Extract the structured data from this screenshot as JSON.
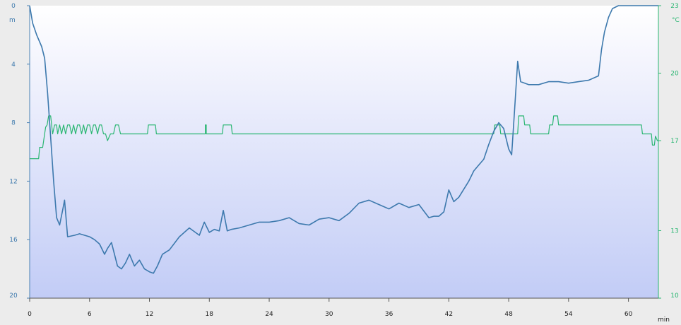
{
  "chart_data": {
    "type": "line",
    "left_axis": {
      "unit": "m",
      "ticks": [
        "0",
        "4",
        "8",
        "12",
        "16",
        "20"
      ],
      "range": [
        0,
        20
      ],
      "inverted": true,
      "color": "#3d79ad"
    },
    "right_axis": {
      "unit": "°C",
      "ticks": [
        "10",
        "13",
        "17",
        "20",
        "23"
      ],
      "range": [
        10,
        23
      ],
      "color": "#2ab672"
    },
    "x_axis": {
      "unit": "min",
      "ticks": [
        "0",
        "6",
        "12",
        "18",
        "24",
        "30",
        "36",
        "42",
        "48",
        "54",
        "60"
      ],
      "range": [
        0,
        63
      ]
    },
    "series": [
      {
        "axis": "left",
        "color": "#3d79ad",
        "x": [
          0,
          0.3,
          0.7,
          1.2,
          1.5,
          1.8,
          2.1,
          2.4,
          2.7,
          3.0,
          3.3,
          3.5,
          3.8,
          4.5,
          5,
          6,
          6.5,
          7,
          7.5,
          7.8,
          8.2,
          8.8,
          9.2,
          9.6,
          10,
          10.5,
          11,
          11.5,
          12,
          12.4,
          12.8,
          13.3,
          14,
          15,
          16,
          17,
          17.5,
          18,
          18.5,
          19,
          19.4,
          19.8,
          20.2,
          21,
          22,
          23,
          24,
          25,
          26,
          27,
          28,
          29,
          30,
          31,
          32,
          33,
          34,
          35,
          36,
          37,
          38,
          39,
          40,
          40.5,
          41,
          41.5,
          42,
          42.5,
          43,
          44,
          44.5,
          45,
          45.5,
          46,
          46.5,
          47,
          47.5,
          48,
          48.3,
          48.6,
          48.9,
          49.2,
          50,
          51,
          52,
          53,
          54,
          55,
          56,
          57,
          57.3,
          57.6,
          58,
          58.4,
          59,
          60,
          61,
          62,
          63
        ],
        "y": [
          0,
          1.2,
          2,
          2.8,
          3.6,
          6,
          9,
          12,
          14.5,
          15,
          14,
          13.3,
          15.8,
          15.7,
          15.6,
          15.8,
          16,
          16.3,
          17,
          16.6,
          16.2,
          17.8,
          18,
          17.6,
          17,
          17.8,
          17.4,
          18,
          18.2,
          18.3,
          17.8,
          17,
          16.7,
          15.8,
          15.2,
          15.7,
          14.8,
          15.5,
          15.3,
          15.4,
          14,
          15.4,
          15.3,
          15.2,
          15,
          14.8,
          14.8,
          14.7,
          14.5,
          14.9,
          15,
          14.6,
          14.5,
          14.7,
          14.2,
          13.5,
          13.3,
          13.6,
          13.9,
          13.5,
          13.8,
          13.6,
          14.5,
          14.4,
          14.4,
          14.1,
          12.6,
          13.4,
          13.1,
          12,
          11.3,
          10.9,
          10.5,
          9.5,
          8.6,
          8,
          8.4,
          9.8,
          10.2,
          7,
          3.8,
          5.2,
          5.4,
          5.4,
          5.2,
          5.2,
          5.3,
          5.2,
          5.1,
          4.8,
          3,
          1.8,
          0.8,
          0.2,
          0,
          0,
          0,
          0,
          0
        ]
      },
      {
        "axis": "right",
        "color": "#2ab672",
        "x": [
          0,
          0.9,
          1.0,
          1.3,
          1.5,
          1.6,
          1.75,
          1.9,
          2.1,
          2.3,
          2.5,
          2.7,
          2.8,
          3.0,
          3.2,
          3.4,
          3.6,
          3.8,
          4.0,
          4.2,
          4.4,
          4.6,
          4.8,
          5.0,
          5.2,
          5.4,
          5.6,
          5.8,
          6.0,
          6.2,
          6.4,
          6.6,
          6.8,
          7.0,
          7.2,
          7.4,
          7.6,
          7.8,
          8.1,
          8.4,
          8.6,
          8.9,
          9.1,
          11.8,
          11.9,
          12.6,
          12.7,
          17.6,
          17.6,
          17.7,
          17.7,
          19.3,
          19.4,
          20.2,
          20.3,
          46.5,
          46.6,
          47.1,
          47.2,
          48.9,
          49.0,
          49.5,
          49.6,
          50.1,
          50.2,
          52.0,
          52.1,
          52.4,
          52.5,
          52.9,
          53.0,
          61.3,
          61.4,
          62.3,
          62.4,
          62.6,
          62.7,
          62.9,
          63
        ],
        "y": [
          16.2,
          16.2,
          16.7,
          16.7,
          17.3,
          17.6,
          17.7,
          18.1,
          18.1,
          17.3,
          17.7,
          17.7,
          17.3,
          17.7,
          17.3,
          17.7,
          17.3,
          17.7,
          17.7,
          17.3,
          17.7,
          17.3,
          17.7,
          17.7,
          17.3,
          17.7,
          17.3,
          17.7,
          17.7,
          17.3,
          17.7,
          17.7,
          17.3,
          17.7,
          17.7,
          17.3,
          17.3,
          17.0,
          17.3,
          17.3,
          17.7,
          17.7,
          17.3,
          17.3,
          17.7,
          17.7,
          17.3,
          17.3,
          17.7,
          17.7,
          17.3,
          17.3,
          17.7,
          17.7,
          17.3,
          17.3,
          17.7,
          17.7,
          17.3,
          17.3,
          18.1,
          18.1,
          17.7,
          17.7,
          17.3,
          17.3,
          17.7,
          17.7,
          18.1,
          18.1,
          17.7,
          17.7,
          17.3,
          17.3,
          16.8,
          16.8,
          17.2,
          17.0,
          17.0
        ]
      }
    ]
  }
}
